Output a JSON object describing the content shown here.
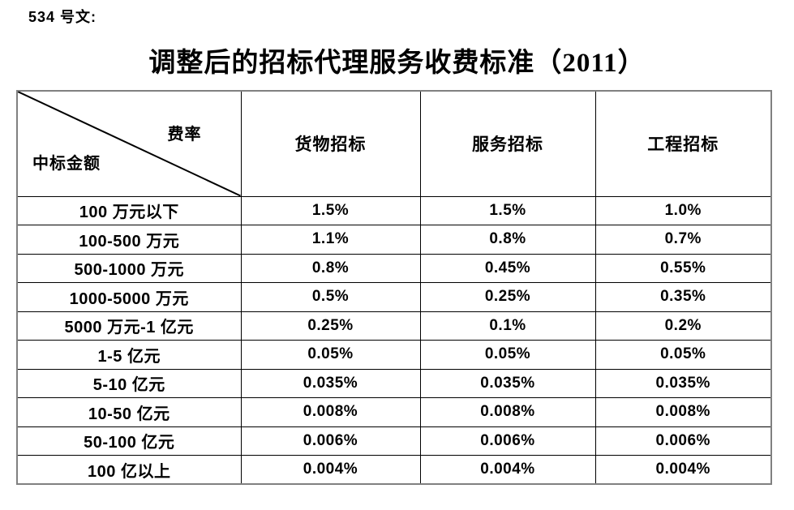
{
  "page": {
    "doc_label": "534 号文:",
    "title": "调整后的招标代理服务收费标准（2011）"
  },
  "table": {
    "corner": {
      "top_right": "费率",
      "bottom_left": "中标金额"
    },
    "columns": [
      "货物招标",
      "服务招标",
      "工程招标"
    ],
    "rows": [
      {
        "label": "100 万元以下",
        "values": [
          "1.5%",
          "1.5%",
          "1.0%"
        ]
      },
      {
        "label": "100-500 万元",
        "values": [
          "1.1%",
          "0.8%",
          "0.7%"
        ]
      },
      {
        "label": "500-1000 万元",
        "values": [
          "0.8%",
          "0.45%",
          "0.55%"
        ]
      },
      {
        "label": "1000-5000 万元",
        "values": [
          "0.5%",
          "0.25%",
          "0.35%"
        ]
      },
      {
        "label": "5000 万元-1 亿元",
        "values": [
          "0.25%",
          "0.1%",
          "0.2%"
        ]
      },
      {
        "label": "1-5 亿元",
        "values": [
          "0.05%",
          "0.05%",
          "0.05%"
        ]
      },
      {
        "label": "5-10 亿元",
        "values": [
          "0.035%",
          "0.035%",
          "0.035%"
        ]
      },
      {
        "label": "10-50 亿元",
        "values": [
          "0.008%",
          "0.008%",
          "0.008%"
        ]
      },
      {
        "label": "50-100 亿元",
        "values": [
          "0.006%",
          "0.006%",
          "0.006%"
        ]
      },
      {
        "label": "100 亿以上",
        "values": [
          "0.004%",
          "0.004%",
          "0.004%"
        ]
      }
    ]
  },
  "colors": {
    "text": "#000000",
    "grid_line": "#000000",
    "outer_border": "#808080",
    "background": "#ffffff"
  }
}
